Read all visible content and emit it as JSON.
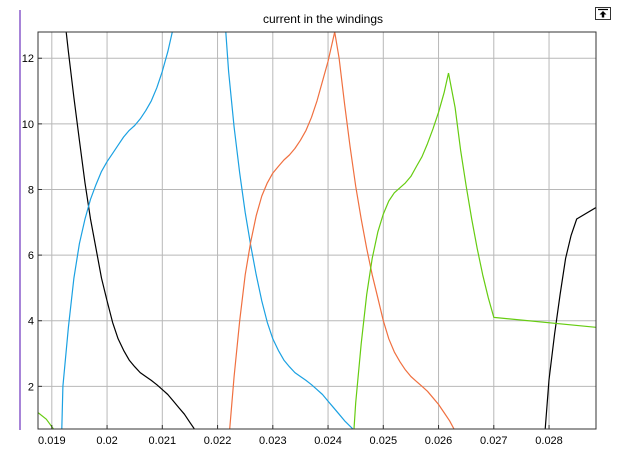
{
  "chart_data": {
    "type": "line",
    "title": "current in the windings",
    "xlabel": "",
    "ylabel": "",
    "xlim": [
      0.01875,
      0.02885
    ],
    "ylim": [
      0.7,
      12.8
    ],
    "xticks": [
      0.019,
      0.02,
      0.021,
      0.022,
      0.023,
      0.024,
      0.025,
      0.026,
      0.027,
      0.028
    ],
    "xtick_labels": [
      "0.019",
      "0.02",
      "0.021",
      "0.022",
      "0.023",
      "0.024",
      "0.025",
      "0.026",
      "0.027",
      "0.028"
    ],
    "yticks": [
      2,
      4,
      6,
      8,
      10,
      12
    ],
    "ytick_labels": [
      "2",
      "4",
      "6",
      "8",
      "10",
      "12"
    ],
    "grid": true,
    "series": [
      {
        "color": "#000000",
        "points": [
          [
            0.01926,
            12.8
          ],
          [
            0.0193,
            12.2
          ],
          [
            0.0194,
            10.8
          ],
          [
            0.0195,
            9.5
          ],
          [
            0.0196,
            8.2
          ],
          [
            0.0197,
            7.1
          ],
          [
            0.0198,
            6.2
          ],
          [
            0.0199,
            5.3
          ],
          [
            0.02,
            4.6
          ],
          [
            0.0201,
            3.95
          ],
          [
            0.0202,
            3.45
          ],
          [
            0.0203,
            3.1
          ],
          [
            0.0204,
            2.8
          ],
          [
            0.0205,
            2.6
          ],
          [
            0.0206,
            2.42
          ],
          [
            0.0207,
            2.3
          ],
          [
            0.0208,
            2.18
          ],
          [
            0.0209,
            2.05
          ],
          [
            0.021,
            1.9
          ],
          [
            0.0211,
            1.75
          ],
          [
            0.0212,
            1.55
          ],
          [
            0.0213,
            1.35
          ],
          [
            0.0214,
            1.15
          ],
          [
            0.0215,
            0.9
          ],
          [
            0.02158,
            0.7
          ]
        ]
      },
      {
        "color": "#000000",
        "points": [
          [
            0.02793,
            0.7
          ],
          [
            0.028,
            2.2
          ],
          [
            0.0281,
            3.6
          ],
          [
            0.0282,
            4.8
          ],
          [
            0.0283,
            5.9
          ],
          [
            0.0284,
            6.6
          ],
          [
            0.0285,
            7.1
          ],
          [
            0.02885,
            7.45
          ]
        ]
      },
      {
        "color": "#1ba1e2",
        "points": [
          [
            0.01918,
            0.7
          ],
          [
            0.0192,
            2.0
          ],
          [
            0.0193,
            3.8
          ],
          [
            0.0194,
            5.3
          ],
          [
            0.0195,
            6.35
          ],
          [
            0.0196,
            7.1
          ],
          [
            0.0197,
            7.7
          ],
          [
            0.0198,
            8.15
          ],
          [
            0.0199,
            8.55
          ],
          [
            0.02,
            8.85
          ],
          [
            0.0201,
            9.1
          ],
          [
            0.0202,
            9.35
          ],
          [
            0.0203,
            9.6
          ],
          [
            0.0204,
            9.8
          ],
          [
            0.0205,
            9.95
          ],
          [
            0.0206,
            10.15
          ],
          [
            0.0207,
            10.4
          ],
          [
            0.0208,
            10.7
          ],
          [
            0.0209,
            11.1
          ],
          [
            0.021,
            11.6
          ],
          [
            0.0211,
            12.2
          ],
          [
            0.02118,
            12.8
          ]
        ]
      },
      {
        "color": "#1ba1e2",
        "points": [
          [
            0.02215,
            12.8
          ],
          [
            0.0222,
            11.6
          ],
          [
            0.0223,
            9.9
          ],
          [
            0.0224,
            8.5
          ],
          [
            0.0225,
            7.3
          ],
          [
            0.0226,
            6.3
          ],
          [
            0.0227,
            5.4
          ],
          [
            0.0228,
            4.6
          ],
          [
            0.0229,
            3.95
          ],
          [
            0.023,
            3.45
          ],
          [
            0.0231,
            3.1
          ],
          [
            0.0232,
            2.8
          ],
          [
            0.0233,
            2.6
          ],
          [
            0.0234,
            2.42
          ],
          [
            0.0235,
            2.3
          ],
          [
            0.0236,
            2.18
          ],
          [
            0.0237,
            2.05
          ],
          [
            0.0238,
            1.9
          ],
          [
            0.0239,
            1.75
          ],
          [
            0.024,
            1.55
          ],
          [
            0.0241,
            1.35
          ],
          [
            0.0242,
            1.15
          ],
          [
            0.0243,
            0.95
          ],
          [
            0.02445,
            0.7
          ]
        ]
      },
      {
        "color": "#f07040",
        "points": [
          [
            0.02222,
            0.7
          ],
          [
            0.0223,
            2.3
          ],
          [
            0.0224,
            4.0
          ],
          [
            0.0225,
            5.4
          ],
          [
            0.0226,
            6.4
          ],
          [
            0.0227,
            7.2
          ],
          [
            0.0228,
            7.8
          ],
          [
            0.0229,
            8.2
          ],
          [
            0.023,
            8.5
          ],
          [
            0.0231,
            8.7
          ],
          [
            0.0232,
            8.9
          ],
          [
            0.0233,
            9.05
          ],
          [
            0.0234,
            9.25
          ],
          [
            0.0235,
            9.5
          ],
          [
            0.0236,
            9.8
          ],
          [
            0.0237,
            10.2
          ],
          [
            0.0238,
            10.7
          ],
          [
            0.0239,
            11.3
          ],
          [
            0.024,
            11.9
          ],
          [
            0.02412,
            12.8
          ]
        ]
      },
      {
        "color": "#f07040",
        "points": [
          [
            0.02412,
            12.8
          ],
          [
            0.0242,
            12.0
          ],
          [
            0.0243,
            10.6
          ],
          [
            0.0244,
            9.3
          ],
          [
            0.0245,
            8.1
          ],
          [
            0.0246,
            7.1
          ],
          [
            0.0247,
            6.2
          ],
          [
            0.0248,
            5.4
          ],
          [
            0.0249,
            4.7
          ],
          [
            0.025,
            4.0
          ],
          [
            0.0251,
            3.45
          ],
          [
            0.0252,
            3.05
          ],
          [
            0.0253,
            2.75
          ],
          [
            0.0254,
            2.5
          ],
          [
            0.0255,
            2.3
          ],
          [
            0.0256,
            2.15
          ],
          [
            0.0257,
            2.0
          ],
          [
            0.0258,
            1.85
          ],
          [
            0.0259,
            1.65
          ],
          [
            0.026,
            1.45
          ],
          [
            0.0261,
            1.2
          ],
          [
            0.0262,
            0.95
          ],
          [
            0.02628,
            0.7
          ]
        ]
      },
      {
        "color": "#66cc11",
        "points": [
          [
            0.01875,
            1.2
          ],
          [
            0.0189,
            1.0
          ],
          [
            0.01903,
            0.7
          ]
        ]
      },
      {
        "color": "#66cc11",
        "points": [
          [
            0.02447,
            0.7
          ],
          [
            0.0245,
            1.5
          ],
          [
            0.0246,
            3.3
          ],
          [
            0.0247,
            4.8
          ],
          [
            0.0248,
            5.9
          ],
          [
            0.0249,
            6.7
          ],
          [
            0.025,
            7.25
          ],
          [
            0.0251,
            7.65
          ],
          [
            0.0252,
            7.9
          ],
          [
            0.0253,
            8.05
          ],
          [
            0.0254,
            8.2
          ],
          [
            0.0255,
            8.4
          ],
          [
            0.0256,
            8.7
          ],
          [
            0.0257,
            9.0
          ],
          [
            0.0258,
            9.4
          ],
          [
            0.0259,
            9.85
          ],
          [
            0.026,
            10.35
          ],
          [
            0.0261,
            10.95
          ],
          [
            0.02618,
            11.55
          ]
        ]
      },
      {
        "color": "#66cc11",
        "points": [
          [
            0.02618,
            11.55
          ],
          [
            0.0263,
            10.5
          ],
          [
            0.0264,
            9.2
          ],
          [
            0.0265,
            8.1
          ],
          [
            0.0266,
            7.1
          ],
          [
            0.0267,
            6.2
          ],
          [
            0.0268,
            5.4
          ],
          [
            0.0269,
            4.7
          ],
          [
            0.027,
            4.1
          ],
          [
            0.02885,
            3.8
          ]
        ]
      }
    ]
  },
  "toolbar": {
    "export_icon": "export-arrow-icon"
  }
}
